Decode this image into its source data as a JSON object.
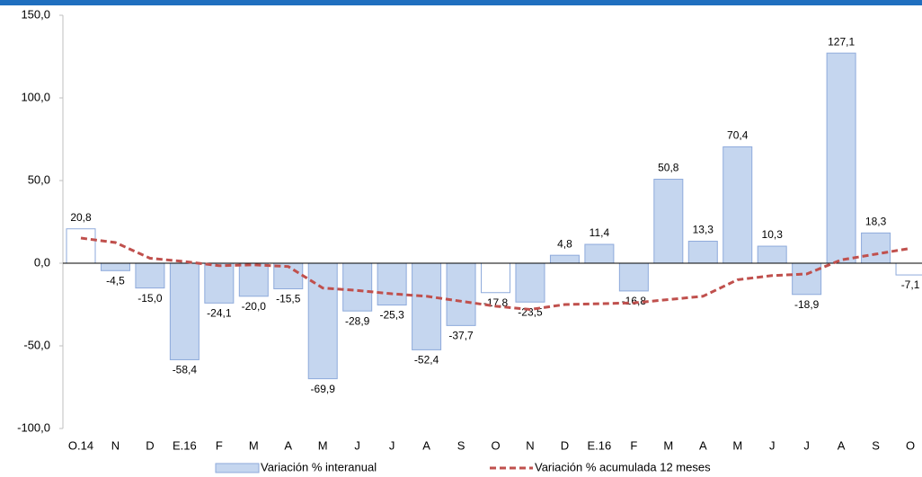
{
  "chart_data": {
    "type": "bar_line",
    "categories": [
      "O.14",
      "N",
      "D",
      "E.16",
      "F",
      "M",
      "A",
      "M",
      "J",
      "J",
      "A",
      "S",
      "O",
      "N",
      "D",
      "E.16",
      "F",
      "M",
      "A",
      "M",
      "J",
      "J",
      "A",
      "S",
      "O"
    ],
    "series": [
      {
        "name": "Variación % interanual",
        "type": "bar",
        "color": "#c5d6ef",
        "stroke": "#8eaadb",
        "colors": [
          "#ffffff",
          "#c5d6ef",
          "#c5d6ef",
          "#c5d6ef",
          "#c5d6ef",
          "#c5d6ef",
          "#c5d6ef",
          "#c5d6ef",
          "#c5d6ef",
          "#c5d6ef",
          "#c5d6ef",
          "#c5d6ef",
          "#ffffff",
          "#c5d6ef",
          "#c5d6ef",
          "#c5d6ef",
          "#c5d6ef",
          "#c5d6ef",
          "#c5d6ef",
          "#c5d6ef",
          "#c5d6ef",
          "#c5d6ef",
          "#c5d6ef",
          "#c5d6ef",
          "#ffffff"
        ],
        "values": [
          20.8,
          -4.5,
          -15.0,
          -58.4,
          -24.1,
          -20.0,
          -15.5,
          -69.9,
          -28.9,
          -25.3,
          -52.4,
          -37.7,
          -17.8,
          -23.5,
          4.8,
          11.4,
          -16.8,
          50.8,
          13.3,
          70.4,
          10.3,
          -18.9,
          127.1,
          18.3,
          -7.1
        ],
        "value_labels": [
          "20,8",
          "-4,5",
          "-15,0",
          "-58,4",
          "-24,1",
          "-20,0",
          "-15,5",
          "-69,9",
          "-28,9",
          "-25,3",
          "-52,4",
          "-37,7",
          "-17,8",
          "-23,5",
          "4,8",
          "11,4",
          "-16,8",
          "50,8",
          "13,3",
          "70,4",
          "10,3",
          "-18,9",
          "127,1",
          "18,3",
          "-7,1"
        ]
      },
      {
        "name": "Variación % acumulada 12 meses",
        "type": "line",
        "color": "#c0504d",
        "dashed": true,
        "values": [
          15.2,
          12.5,
          3,
          1,
          -1.5,
          -1,
          -2,
          -15,
          -16.5,
          -18.5,
          -20,
          -23,
          -26,
          -28,
          -25,
          -24.5,
          -24,
          -22,
          -20,
          -10,
          -7.5,
          -6.5,
          2,
          5.5,
          9
        ]
      }
    ],
    "ylim": [
      -100,
      150
    ],
    "yticks": [
      {
        "value": -100,
        "label": "-100,0"
      },
      {
        "value": -50,
        "label": "-50,0"
      },
      {
        "value": 0,
        "label": "0,0"
      },
      {
        "value": 50,
        "label": "50,0"
      },
      {
        "value": 100,
        "label": "100,0"
      },
      {
        "value": 150,
        "label": "150,0"
      }
    ],
    "legend": "bottom"
  }
}
